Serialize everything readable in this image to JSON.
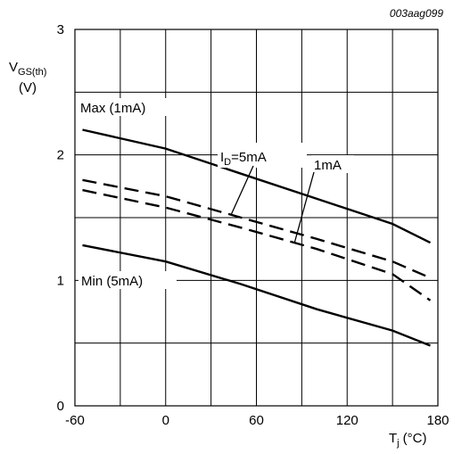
{
  "figure_code": "003aag099",
  "chart_data": {
    "type": "line",
    "ylabel_main": "V",
    "ylabel_sub": "GS(th)",
    "ylabel_unit": "(V)",
    "xlabel_main": "T",
    "xlabel_sub": "j",
    "xlabel_unit": "(°C)",
    "xlim": [
      -60,
      180
    ],
    "ylim": [
      0,
      3
    ],
    "x_ticks": [
      -60,
      0,
      60,
      120,
      180
    ],
    "y_ticks": [
      0,
      1,
      2,
      3
    ],
    "grid": true,
    "series": [
      {
        "name": "Max (1mA)",
        "style": "solid",
        "x": [
          -55,
          0,
          50,
          100,
          150,
          175
        ],
        "y": [
          2.2,
          2.05,
          1.85,
          1.65,
          1.45,
          1.3
        ]
      },
      {
        "name": "1mA",
        "style": "dashed",
        "x": [
          -55,
          0,
          50,
          100,
          150,
          175
        ],
        "y": [
          1.8,
          1.67,
          1.5,
          1.33,
          1.15,
          1.02
        ]
      },
      {
        "name": "5mA",
        "style": "dashed",
        "x": [
          -55,
          0,
          50,
          100,
          150,
          175
        ],
        "y": [
          1.72,
          1.58,
          1.42,
          1.25,
          1.05,
          0.84
        ]
      },
      {
        "name": "Min (5mA)",
        "style": "solid",
        "x": [
          -55,
          0,
          50,
          100,
          150,
          175
        ],
        "y": [
          1.28,
          1.15,
          0.97,
          0.77,
          0.6,
          0.48
        ]
      }
    ],
    "annotations": {
      "max_label": "Max (1mA)",
      "min_label": "Min (5mA)",
      "id_main": "I",
      "id_sub": "D",
      "id_rest": "=5mA",
      "ma1": "1mA"
    }
  }
}
